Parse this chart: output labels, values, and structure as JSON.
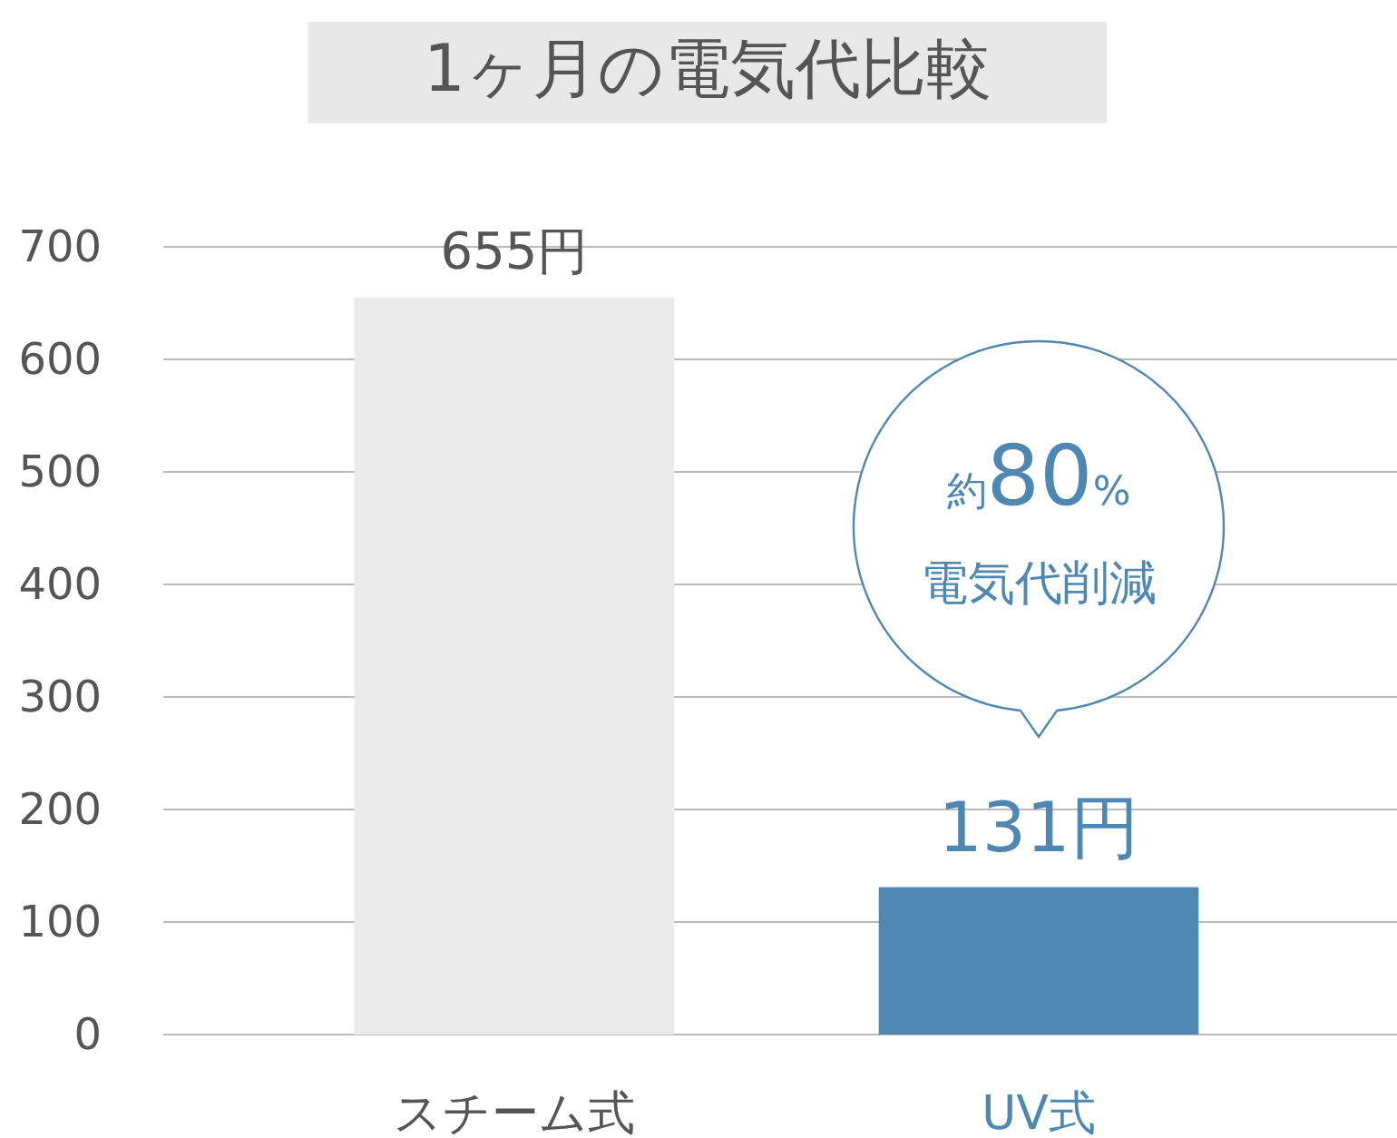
{
  "chart_data": {
    "type": "bar",
    "title": "1ヶ月の電気代比較",
    "categories": [
      "スチーム式",
      "UV式"
    ],
    "values": [
      655,
      131
    ],
    "colors": [
      "#ebebeb",
      "#4f87b3"
    ],
    "value_labels": [
      "655円",
      "131円"
    ],
    "ylim": [
      0,
      700
    ],
    "yticks": [
      0,
      100,
      200,
      300,
      400,
      500,
      600,
      700
    ],
    "grid": "y",
    "annotations": [
      "約80%",
      "電気代削減"
    ]
  }
}
